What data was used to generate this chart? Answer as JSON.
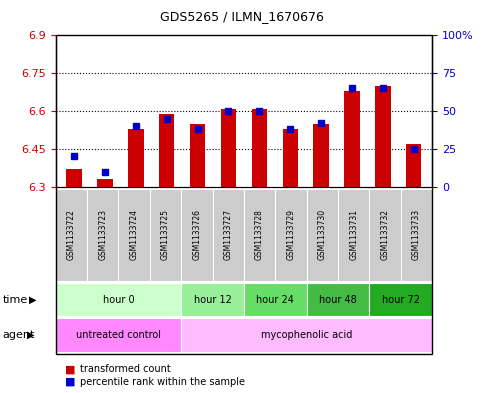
{
  "title": "GDS5265 / ILMN_1670676",
  "samples": [
    "GSM1133722",
    "GSM1133723",
    "GSM1133724",
    "GSM1133725",
    "GSM1133726",
    "GSM1133727",
    "GSM1133728",
    "GSM1133729",
    "GSM1133730",
    "GSM1133731",
    "GSM1133732",
    "GSM1133733"
  ],
  "red_values": [
    6.37,
    6.33,
    6.53,
    6.59,
    6.55,
    6.61,
    6.61,
    6.53,
    6.55,
    6.68,
    6.7,
    6.47
  ],
  "blue_values_pct": [
    20,
    10,
    40,
    45,
    38,
    50,
    50,
    38,
    42,
    65,
    65,
    25
  ],
  "ylim_left": [
    6.3,
    6.9
  ],
  "ylim_right": [
    0,
    100
  ],
  "yticks_left": [
    6.3,
    6.45,
    6.6,
    6.75,
    6.9
  ],
  "yticks_right": [
    0,
    25,
    50,
    75,
    100
  ],
  "ytick_labels_left": [
    "6.3",
    "6.45",
    "6.6",
    "6.75",
    "6.9"
  ],
  "ytick_labels_right": [
    "0",
    "25",
    "50",
    "75",
    "100%"
  ],
  "left_color": "#cc0000",
  "right_color": "#0000cc",
  "time_groups": [
    {
      "label": "hour 0",
      "indices": [
        0,
        1,
        2,
        3
      ],
      "color": "#ccffcc"
    },
    {
      "label": "hour 12",
      "indices": [
        4,
        5
      ],
      "color": "#99ee99"
    },
    {
      "label": "hour 24",
      "indices": [
        6,
        7
      ],
      "color": "#66dd66"
    },
    {
      "label": "hour 48",
      "indices": [
        8,
        9
      ],
      "color": "#44bb44"
    },
    {
      "label": "hour 72",
      "indices": [
        10,
        11
      ],
      "color": "#22aa22"
    }
  ],
  "agent_groups": [
    {
      "label": "untreated control",
      "indices": [
        0,
        1,
        2,
        3
      ],
      "color": "#ff88ff"
    },
    {
      "label": "mycophenolic acid",
      "indices": [
        4,
        5,
        6,
        7,
        8,
        9,
        10,
        11
      ],
      "color": "#ffbbff"
    }
  ],
  "sample_bg": "#cccccc",
  "legend_red_label": "transformed count",
  "legend_blue_label": "percentile rank within the sample",
  "plot_bg": "#ffffff"
}
